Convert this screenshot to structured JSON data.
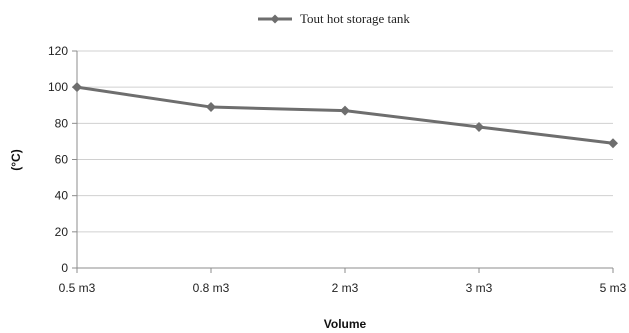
{
  "chart_data": {
    "type": "line",
    "categories": [
      "0.5 m3",
      "0.8 m3",
      "2 m3",
      "3 m3",
      "5 m3"
    ],
    "series": [
      {
        "name": "Tout  hot storage tank",
        "values": [
          100,
          89,
          87,
          78,
          69
        ]
      }
    ],
    "xlabel": "Volume",
    "ylabel": "(°C)",
    "ylim": [
      0,
      120
    ],
    "yticks": [
      "0",
      "20",
      "40",
      "60",
      "80",
      "100",
      "120"
    ],
    "grid": true,
    "legend_position": "top-center",
    "colors": {
      "series": "#6e6e6e",
      "grid": "#d0d0d0",
      "axis": "#8c8c8c"
    }
  }
}
